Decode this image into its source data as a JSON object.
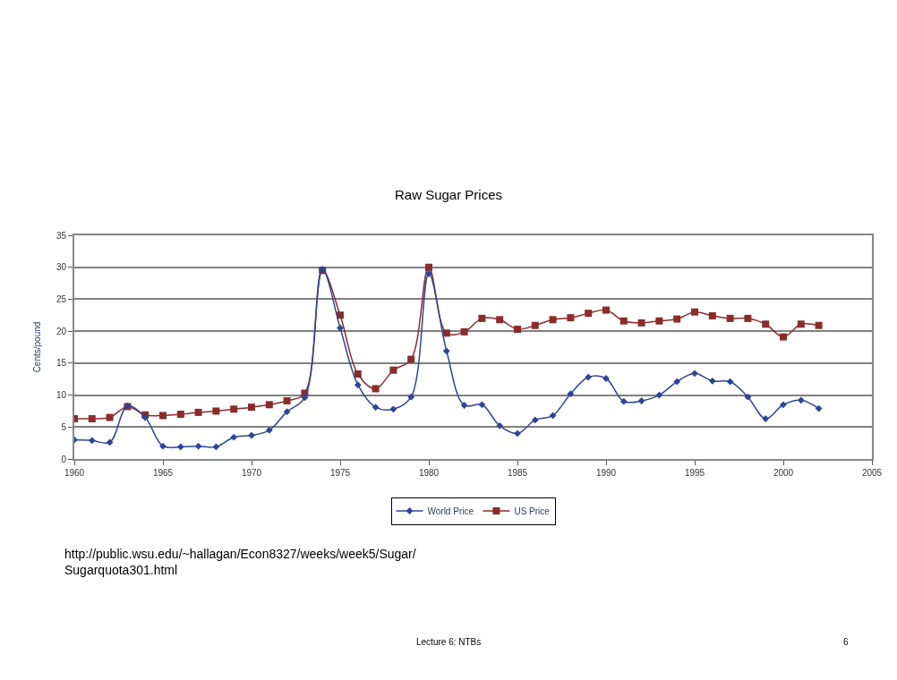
{
  "chart_data": {
    "type": "line",
    "title": "Raw Sugar Prices",
    "ylabel": "Cents/pound",
    "x": [
      1960,
      1961,
      1962,
      1963,
      1964,
      1965,
      1966,
      1967,
      1968,
      1969,
      1970,
      1971,
      1972,
      1973,
      1974,
      1975,
      1976,
      1977,
      1978,
      1979,
      1980,
      1981,
      1982,
      1983,
      1984,
      1985,
      1986,
      1987,
      1988,
      1989,
      1990,
      1991,
      1992,
      1993,
      1994,
      1995,
      1996,
      1997,
      1998,
      1999,
      2000,
      2001,
      2002
    ],
    "series": [
      {
        "name": "World Price",
        "color": "#2e4595",
        "marker": "diamond",
        "values": [
          3.0,
          2.9,
          2.6,
          8.3,
          6.5,
          2.0,
          1.9,
          2.0,
          1.9,
          3.4,
          3.7,
          4.5,
          7.4,
          9.6,
          29.7,
          20.5,
          11.6,
          8.1,
          7.8,
          9.7,
          29.0,
          16.9,
          8.4,
          8.5,
          5.2,
          4.0,
          6.1,
          6.8,
          10.2,
          12.8,
          12.6,
          9.0,
          9.1,
          10.0,
          12.1,
          13.4,
          12.2,
          12.1,
          9.7,
          6.3,
          8.5,
          9.2,
          7.9
        ]
      },
      {
        "name": "US Price",
        "color": "#8b2c2c",
        "marker": "square",
        "values": [
          6.3,
          6.3,
          6.5,
          8.2,
          6.9,
          6.8,
          7.0,
          7.3,
          7.5,
          7.8,
          8.1,
          8.5,
          9.1,
          10.3,
          29.5,
          22.5,
          13.3,
          11.0,
          13.9,
          15.6,
          30.0,
          19.7,
          19.9,
          22.0,
          21.8,
          20.3,
          20.9,
          21.8,
          22.1,
          22.8,
          23.3,
          21.6,
          21.3,
          21.6,
          21.9,
          23.0,
          22.4,
          22.0,
          22.0,
          21.1,
          19.1,
          21.1,
          20.9
        ]
      }
    ],
    "xlim": [
      1960,
      2005
    ],
    "xticks": [
      1960,
      1965,
      1970,
      1975,
      1980,
      1985,
      1990,
      1995,
      2000,
      2005
    ],
    "ylim": [
      0,
      35
    ],
    "yticks": [
      0,
      5,
      10,
      15,
      20,
      25,
      30,
      35
    ],
    "grid": "y",
    "legend": "bottom",
    "annotations": [
      "http://public.wsu.edu/~hallagan/Econ8327/weeks/week5/Sugar/Sugarquota301.html",
      "Lecture 6: NTBs",
      "6"
    ]
  }
}
